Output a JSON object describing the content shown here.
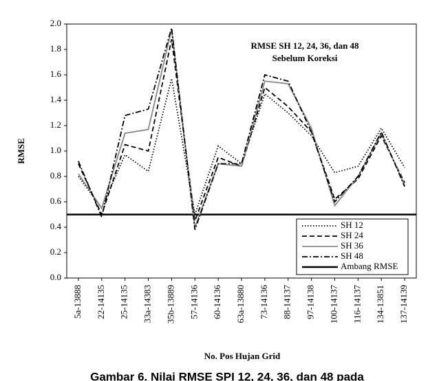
{
  "chart_data": {
    "type": "line",
    "annotation": [
      "RMSE SH 12, 24, 36, dan 48",
      "Sebelum Koreksi"
    ],
    "xlabel": "No. Pos Hujan Grid",
    "ylabel": "RMSE",
    "caption": "Gambar 6. Nilai RMSE SPI 12, 24, 36, dan 48 pada",
    "categories": [
      "5a-13888",
      "22-14135",
      "25-14135",
      "33a-14383",
      "35b-13889",
      "57-14136",
      "60-14136",
      "63a-13880",
      "73-14136",
      "88-14137",
      "97-14138",
      "100-14137",
      "116-14137",
      "134-13851",
      "137-14139"
    ],
    "series": [
      {
        "name": "SH 12",
        "color": "#000000",
        "dash": "dotted",
        "values": [
          0.8,
          0.55,
          0.97,
          0.84,
          1.57,
          0.5,
          1.04,
          0.9,
          1.45,
          1.3,
          1.12,
          0.83,
          0.88,
          1.18,
          0.87
        ]
      },
      {
        "name": "SH 24",
        "color": "#000000",
        "dash": "dashed",
        "values": [
          0.9,
          0.5,
          1.05,
          1.0,
          1.88,
          0.45,
          0.95,
          0.88,
          1.5,
          1.35,
          1.15,
          0.62,
          0.78,
          1.12,
          0.75
        ]
      },
      {
        "name": "SH 36",
        "color": "#888888",
        "dash": "solid",
        "values": [
          0.82,
          0.55,
          1.14,
          1.17,
          1.96,
          0.4,
          0.9,
          0.88,
          1.55,
          1.53,
          1.18,
          0.57,
          0.8,
          1.14,
          0.73
        ]
      },
      {
        "name": "SH 48",
        "color": "#000000",
        "dash": "dashdot",
        "values": [
          0.92,
          0.48,
          1.28,
          1.33,
          1.97,
          0.38,
          0.9,
          0.9,
          1.6,
          1.55,
          1.15,
          0.6,
          0.8,
          1.15,
          0.72
        ]
      }
    ],
    "threshold": {
      "name": "Ambang RMSE",
      "value": 0.5,
      "color": "#000000"
    },
    "ylim": [
      0,
      2
    ],
    "yticks": [
      {
        "value": 0,
        "label": "0.0"
      },
      0.2,
      0.4,
      0.6,
      0.8,
      {
        "value": 1,
        "label": "1.0"
      },
      1.2,
      1.4,
      1.6,
      1.8,
      {
        "value": 2,
        "label": "2.0"
      }
    ],
    "legend": "lower right"
  }
}
